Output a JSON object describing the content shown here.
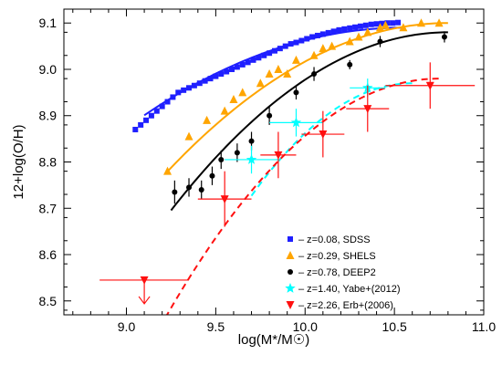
{
  "chart_data": {
    "type": "scatter",
    "xlabel": "log(M*/M☉)",
    "ylabel": "12+log(O/H)",
    "xlim": [
      8.65,
      11.0
    ],
    "ylim": [
      8.47,
      9.13
    ],
    "xticks": [
      9.0,
      9.5,
      10.0,
      10.5,
      11.0
    ],
    "xtick_labels": [
      "9.0",
      "9.5",
      "10.0",
      "10.5",
      "11.0"
    ],
    "yticks": [
      8.5,
      8.6,
      8.7,
      8.8,
      8.9,
      9.0,
      9.1
    ],
    "ytick_labels": [
      "8.5",
      "8.6",
      "8.7",
      "8.8",
      "8.9",
      "9.0",
      "9.1"
    ],
    "legend_position": "bottom-right",
    "series": [
      {
        "name": "z=0.08, SDSS",
        "label_prefix": "– ",
        "color": "#1f1fff",
        "marker": "square",
        "points": [
          [
            9.05,
            8.87
          ],
          [
            9.08,
            8.88
          ],
          [
            9.11,
            8.89
          ],
          [
            9.14,
            8.9
          ],
          [
            9.17,
            8.91
          ],
          [
            9.2,
            8.92
          ],
          [
            9.23,
            8.93
          ],
          [
            9.26,
            8.94
          ],
          [
            9.29,
            8.95
          ],
          [
            9.32,
            8.955
          ],
          [
            9.35,
            8.96
          ],
          [
            9.38,
            8.965
          ],
          [
            9.41,
            8.97
          ],
          [
            9.44,
            8.975
          ],
          [
            9.47,
            8.98
          ],
          [
            9.5,
            8.985
          ],
          [
            9.53,
            8.99
          ],
          [
            9.56,
            8.995
          ],
          [
            9.59,
            9.0
          ],
          [
            9.62,
            9.005
          ],
          [
            9.65,
            9.01
          ],
          [
            9.68,
            9.015
          ],
          [
            9.71,
            9.02
          ],
          [
            9.74,
            9.025
          ],
          [
            9.77,
            9.03
          ],
          [
            9.8,
            9.035
          ],
          [
            9.83,
            9.04
          ],
          [
            9.86,
            9.045
          ],
          [
            9.89,
            9.05
          ],
          [
            9.92,
            9.055
          ],
          [
            9.95,
            9.058
          ],
          [
            9.98,
            9.062
          ],
          [
            10.01,
            9.066
          ],
          [
            10.04,
            9.07
          ],
          [
            10.07,
            9.073
          ],
          [
            10.1,
            9.076
          ],
          [
            10.13,
            9.079
          ],
          [
            10.16,
            9.082
          ],
          [
            10.19,
            9.085
          ],
          [
            10.22,
            9.087
          ],
          [
            10.25,
            9.089
          ],
          [
            10.28,
            9.091
          ],
          [
            10.31,
            9.093
          ],
          [
            10.34,
            9.095
          ],
          [
            10.37,
            9.097
          ],
          [
            10.4,
            9.098
          ],
          [
            10.43,
            9.099
          ],
          [
            10.46,
            9.1
          ],
          [
            10.49,
            9.1
          ],
          [
            10.52,
            9.101
          ]
        ],
        "fit": {
          "x_range": [
            9.1,
            10.55
          ],
          "coeffs": [
            9.09,
            0.0,
            -0.09
          ]
        }
      },
      {
        "name": "z=0.29, SHELS",
        "label_prefix": "– ",
        "color": "#ffa500",
        "marker": "triangle",
        "points": [
          [
            9.23,
            8.78
          ],
          [
            9.35,
            8.855
          ],
          [
            9.45,
            8.89
          ],
          [
            9.55,
            8.91
          ],
          [
            9.6,
            8.935
          ],
          [
            9.65,
            8.95
          ],
          [
            9.75,
            8.97
          ],
          [
            9.8,
            8.99
          ],
          [
            9.85,
            9.0
          ],
          [
            9.9,
            8.99
          ],
          [
            9.95,
            9.02
          ],
          [
            10.05,
            9.03
          ],
          [
            10.1,
            9.045
          ],
          [
            10.15,
            9.05
          ],
          [
            10.25,
            9.06
          ],
          [
            10.3,
            9.07
          ],
          [
            10.35,
            9.08
          ],
          [
            10.42,
            9.09
          ],
          [
            10.45,
            9.095
          ],
          [
            10.55,
            9.09
          ],
          [
            10.65,
            9.1
          ],
          [
            10.75,
            9.1
          ]
        ],
        "fit": {
          "x_range": [
            9.22,
            10.8
          ],
          "coeffs": [
            9.1,
            0.0,
            -0.13
          ]
        }
      },
      {
        "name": "z=0.78, DEEP2",
        "label_prefix": "– ",
        "color": "#000000",
        "marker": "circle",
        "points": [
          [
            9.27,
            8.735
          ],
          [
            9.35,
            8.745
          ],
          [
            9.42,
            8.74
          ],
          [
            9.48,
            8.77
          ],
          [
            9.53,
            8.805
          ],
          [
            9.62,
            8.82
          ],
          [
            9.7,
            8.845
          ],
          [
            9.8,
            8.9
          ],
          [
            9.95,
            8.95
          ],
          [
            10.05,
            8.99
          ],
          [
            10.25,
            9.01
          ],
          [
            10.42,
            9.06
          ],
          [
            10.78,
            9.07
          ]
        ],
        "yerr": [
          0.025,
          0.02,
          0.02,
          0.02,
          0.02,
          0.02,
          0.02,
          0.02,
          0.015,
          0.015,
          0.01,
          0.012,
          0.012
        ],
        "fit": {
          "x_range": [
            9.25,
            10.8
          ],
          "coeffs": [
            9.08,
            0.0,
            -0.16
          ]
        }
      },
      {
        "name": "z=1.40, Yabe+(2012)",
        "label_prefix": "– ",
        "color": "#00ffff",
        "marker": "star",
        "points": [
          [
            9.7,
            8.805
          ],
          [
            9.95,
            8.885
          ],
          [
            10.35,
            8.96
          ]
        ],
        "xerr": [
          0.15,
          0.15,
          0.1
        ],
        "yerr": [
          0.03,
          0.03,
          0.02
        ],
        "fit": {
          "x_range": [
            9.7,
            10.6
          ],
          "coeffs": [
            8.97,
            0.0,
            -0.3
          ]
        }
      },
      {
        "name": "z=2.26, Erb+(2006)",
        "label_prefix": "– ",
        "color": "#ff1010",
        "marker": "triangle-down",
        "points": [
          [
            9.1,
            8.545
          ],
          [
            9.55,
            8.72
          ],
          [
            9.85,
            8.815
          ],
          [
            10.1,
            8.86
          ],
          [
            10.35,
            8.915
          ],
          [
            10.7,
            8.965
          ]
        ],
        "xerr": [
          0.25,
          0.15,
          0.1,
          0.12,
          0.12,
          0.25
        ],
        "yerr": [
          0.0,
          0.06,
          0.05,
          0.05,
          0.05,
          0.05
        ],
        "upper_limit_index": 0,
        "fit": {
          "x_range": [
            9.1,
            10.75
          ],
          "coeffs": [
            8.98,
            0.0,
            -0.22
          ]
        }
      }
    ]
  }
}
